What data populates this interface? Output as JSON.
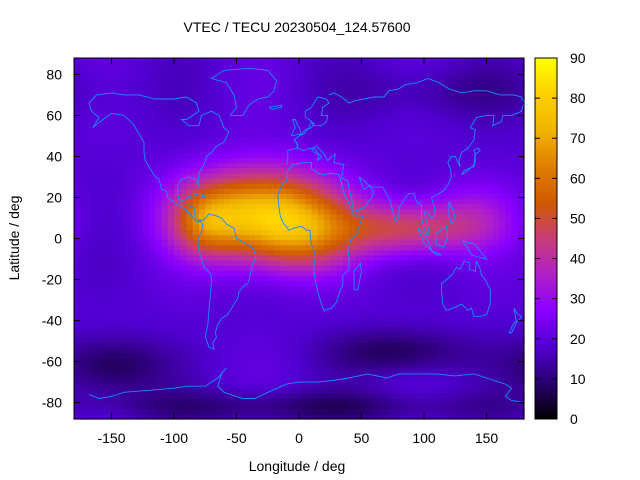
{
  "chart_data": {
    "type": "heatmap",
    "title": "VTEC / TECU 20230504_124.57600",
    "xlabel": "Longitude / deg",
    "ylabel": "Latitude / deg",
    "xlim": [
      -180,
      180
    ],
    "ylim": [
      -88,
      88
    ],
    "x_ticks": [
      -150,
      -100,
      -50,
      0,
      50,
      100,
      150
    ],
    "y_ticks": [
      -80,
      -60,
      -40,
      -20,
      0,
      20,
      40,
      60,
      80
    ],
    "colorbar": {
      "range": [
        0,
        90
      ],
      "ticks": [
        0,
        10,
        20,
        30,
        40,
        50,
        60,
        70,
        80,
        90
      ]
    },
    "colormap": [
      "#000000",
      "#2a0070",
      "#5000d0",
      "#8a00ff",
      "#b020c8",
      "#c83c78",
      "#d05a00",
      "#e07e00",
      "#f0b400",
      "#ffd000",
      "#ffff00"
    ],
    "grid": false,
    "features": [
      {
        "name": "main-crest",
        "lon": -30,
        "lat": 12,
        "peak_vtec": 80
      },
      {
        "name": "western-crest",
        "lon": -75,
        "lat": 8,
        "peak_vtec": 62
      },
      {
        "name": "indian-ocean-band",
        "lon": 85,
        "lat": 5,
        "peak_vtec": 50
      },
      {
        "name": "asia-low-lat",
        "lon": 140,
        "lat": 12,
        "peak_vtec": 38
      },
      {
        "name": "southern-dark-patch",
        "lon": -150,
        "lat": -62,
        "peak_vtec": 6
      },
      {
        "name": "southern-dark-patch-2",
        "lon": 80,
        "lat": -55,
        "peak_vtec": 7
      },
      {
        "name": "polar-south",
        "lon": 0,
        "lat": -82,
        "peak_vtec": 8
      }
    ]
  }
}
